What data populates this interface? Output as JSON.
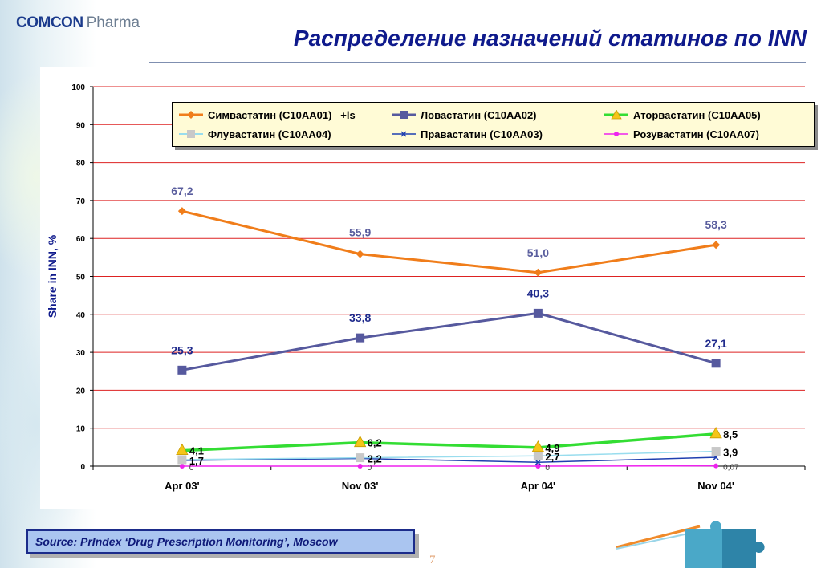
{
  "header": {
    "logo_brand": "COMCON",
    "logo_sub": "Pharma",
    "title": "Распределение назначений статинов по INN"
  },
  "footer": {
    "source": "Source: PrIndex ‘Drug Prescription Monitoring’, Moscow",
    "page_number": "7"
  },
  "colors": {
    "title": "#0f1a8c",
    "simvastatin": "#f07d1a",
    "lovastatin": "#56599e",
    "atorvastatin": "#33dd33",
    "fluvastatin": "#99ddee",
    "pravastatin": "#1f3fb0",
    "rosuvastatin": "#ee22ee",
    "gridline": "#dd2222",
    "legend_bg": "#fffbd6",
    "source_bg": "#aac5f0"
  },
  "chart_data": {
    "type": "line",
    "title": "",
    "xlabel": "",
    "ylabel": "Share in INN, %",
    "ylim": [
      0,
      100
    ],
    "yticks": [
      "0",
      "10",
      "20",
      "30",
      "40",
      "50",
      "60",
      "70",
      "80",
      "90",
      "100"
    ],
    "categories": [
      "Apr 03'",
      "Nov 03'",
      "Apr 04'",
      "Nov 04'"
    ],
    "grid": true,
    "legend_position": "top",
    "series": [
      {
        "key": "simvastatin",
        "name": "Симвастатин (C10AA01)   +ls",
        "marker": "diamond",
        "values": [
          67.2,
          55.9,
          51.0,
          58.3
        ],
        "labels": [
          "67,2",
          "55,9",
          "51,0",
          "58,3"
        ]
      },
      {
        "key": "lovastatin",
        "name": "Ловастатин (C10AA02)",
        "marker": "square",
        "values": [
          25.3,
          33.8,
          40.3,
          27.1
        ],
        "labels": [
          "25,3",
          "33,8",
          "40,3",
          "27,1"
        ]
      },
      {
        "key": "atorvastatin",
        "name": "Аторвастатин (C10AA05)",
        "marker": "triangle",
        "values": [
          4.1,
          6.2,
          4.9,
          8.5
        ],
        "labels": [
          "4,1",
          "6,2",
          "4,9",
          "8,5"
        ]
      },
      {
        "key": "fluvastatin",
        "name": "Флувастатин (C10AA04)",
        "marker": "square",
        "values": [
          1.7,
          2.2,
          2.7,
          3.9
        ],
        "labels": [
          "1,7",
          "2,2",
          "2,7",
          "3,9"
        ]
      },
      {
        "key": "pravastatin",
        "name": "Правастатин (C10AA03)",
        "marker": "x",
        "values": [
          1.5,
          2.0,
          1.0,
          2.3
        ],
        "labels": []
      },
      {
        "key": "rosuvastatin",
        "name": "Розувастатин (C10AA07)",
        "marker": "circle",
        "values": [
          0,
          0,
          0,
          0.07
        ],
        "labels": [
          "0",
          "0",
          "0",
          "0,07"
        ]
      }
    ]
  }
}
